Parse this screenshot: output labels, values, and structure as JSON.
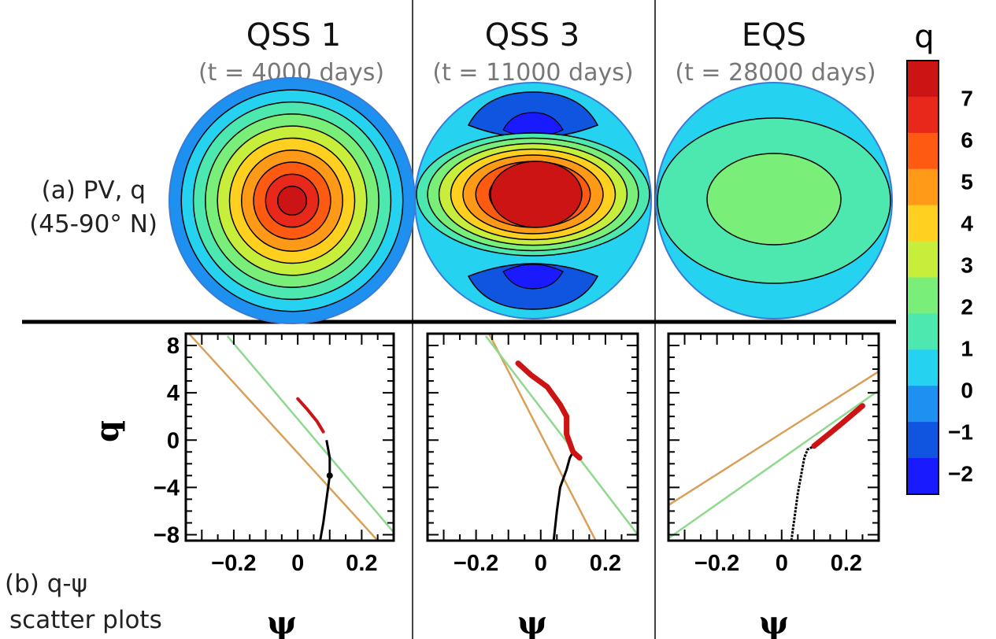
{
  "row_labels": {
    "a_line1": "(a) PV, q",
    "a_line2": "(45-90° N)",
    "b_line1": "(b) q-ψ",
    "b_line2": "scatter plots"
  },
  "colorbar": {
    "title": "q",
    "ticks": [
      7,
      6,
      5,
      4,
      3,
      2,
      1,
      0,
      -1,
      -2
    ],
    "range": [
      -2.5,
      7.9
    ],
    "colors": [
      "#1a1aff",
      "#1055e0",
      "#1e90f0",
      "#25d3f0",
      "#4de8b0",
      "#79ef7a",
      "#c8ee3c",
      "#ffd020",
      "#ff9a18",
      "#ff5a12",
      "#e8281a",
      "#cc1414"
    ]
  },
  "panels": [
    {
      "title": "QSS 1",
      "subtitle": "(t = 4000 days)",
      "pv_map": {
        "shape": "circular-concentric",
        "levels_outer_to_inner": [
          -0.6,
          0.3,
          1.2,
          2.1,
          3.0,
          3.9,
          4.8,
          5.7,
          6.6,
          7.5
        ]
      },
      "scatter": {
        "xlabel": "ψ",
        "ylabel": "q",
        "xlim": [
          -0.35,
          0.3
        ],
        "ylim": [
          -8.5,
          9
        ],
        "xticks": [
          -0.2,
          0,
          0.2
        ],
        "yticks": [
          8,
          4,
          0,
          -4,
          -8
        ],
        "lines": [
          {
            "color": "#d9a05a",
            "points": [
              [
                -0.34,
                9.0
              ],
              [
                0.25,
                -8.5
              ]
            ]
          },
          {
            "color": "#8fd98f",
            "points": [
              [
                -0.22,
                8.8
              ],
              [
                0.3,
                -7.8
              ]
            ]
          }
        ],
        "black_curve": [
          [
            0.07,
            -8.5
          ],
          [
            0.08,
            -7.0
          ],
          [
            0.09,
            -5.0
          ],
          [
            0.1,
            -3.0
          ],
          [
            0.1,
            -1.5
          ],
          [
            0.09,
            0.0
          ]
        ],
        "red_curve": [
          [
            0.0,
            3.5
          ],
          [
            0.03,
            2.6
          ],
          [
            0.06,
            1.6
          ],
          [
            0.08,
            0.7
          ]
        ]
      }
    },
    {
      "title": "QSS 3",
      "subtitle": "(t = 11000 days)",
      "pv_map": {
        "shape": "circular-banded",
        "levels_outer_to_inner": [
          0.3,
          1.2,
          2.1,
          3.0,
          3.9,
          4.8,
          5.7,
          6.6,
          7.5
        ]
      },
      "scatter": {
        "xlabel": "ψ",
        "ylabel": "q",
        "xlim": [
          -0.35,
          0.3
        ],
        "ylim": [
          -8.5,
          9
        ],
        "xticks": [
          -0.2,
          0,
          0.2
        ],
        "yticks": [
          8,
          4,
          0,
          -4,
          -8
        ],
        "lines": [
          {
            "color": "#d9a05a",
            "points": [
              [
                -0.16,
                9.0
              ],
              [
                0.17,
                -8.5
              ]
            ]
          },
          {
            "color": "#8fd98f",
            "points": [
              [
                -0.17,
                8.8
              ],
              [
                0.3,
                -8.0
              ]
            ]
          }
        ],
        "black_curve": [
          [
            0.04,
            -8.5
          ],
          [
            0.05,
            -6.0
          ],
          [
            0.06,
            -4.0
          ],
          [
            0.08,
            -2.5
          ],
          [
            0.09,
            -1.5
          ],
          [
            0.1,
            -1.0
          ]
        ],
        "red_curve": [
          [
            -0.07,
            6.5
          ],
          [
            -0.03,
            5.5
          ],
          [
            0.02,
            4.5
          ],
          [
            0.06,
            3.0
          ],
          [
            0.08,
            2.0
          ],
          [
            0.08,
            0.5
          ],
          [
            0.1,
            -1.0
          ],
          [
            0.12,
            -1.5
          ]
        ]
      }
    },
    {
      "title": "EQS",
      "subtitle": "(t = 28000 days)",
      "pv_map": {
        "shape": "circular-elliptic",
        "levels_outer_to_inner": [
          0.3,
          1.2,
          2.1
        ]
      },
      "scatter": {
        "xlabel": "ψ",
        "ylabel": "q",
        "xlim": [
          -0.35,
          0.3
        ],
        "ylim": [
          -8.5,
          9
        ],
        "xticks": [
          -0.2,
          0,
          0.2
        ],
        "yticks": [
          8,
          4,
          0,
          -4,
          -8
        ],
        "lines": [
          {
            "color": "#d9a05a",
            "points": [
              [
                -0.35,
                -5.5
              ],
              [
                0.3,
                5.8
              ]
            ]
          },
          {
            "color": "#8fd98f",
            "points": [
              [
                -0.35,
                -8.3
              ],
              [
                0.3,
                4.2
              ]
            ]
          }
        ],
        "black_curve": [
          [
            0.03,
            -8.5
          ],
          [
            0.04,
            -6.5
          ],
          [
            0.05,
            -4.5
          ],
          [
            0.06,
            -3.0
          ],
          [
            0.07,
            -1.5
          ],
          [
            0.08,
            -0.8
          ],
          [
            0.1,
            -0.5
          ]
        ],
        "red_curve": [
          [
            0.1,
            -0.5
          ],
          [
            0.15,
            0.6
          ],
          [
            0.19,
            1.5
          ],
          [
            0.22,
            2.2
          ],
          [
            0.25,
            2.9
          ]
        ]
      }
    }
  ]
}
